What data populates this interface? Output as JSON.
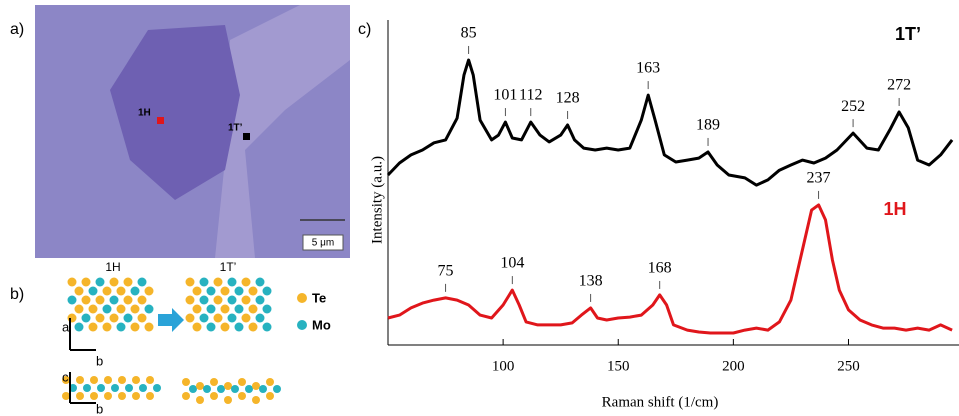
{
  "panels": {
    "a": {
      "label": "a)",
      "spot_1H": "1H",
      "spot_1T": "1T’",
      "scale_bar": "5 μm"
    },
    "b": {
      "label": "b)",
      "title_1H": "1H",
      "title_1T": "1T’",
      "legend": [
        "Te",
        "Mo"
      ],
      "axes_top": [
        "a",
        "b"
      ],
      "axes_bottom": [
        "c",
        "b"
      ]
    }
  },
  "chart_data": {
    "type": "line",
    "panel_label": "c)",
    "x_label": "Raman shift (1/cm)",
    "y_label": "Intensity (a.u.)",
    "xlim": [
      50,
      298
    ],
    "xticks": [
      100,
      150,
      200,
      250
    ],
    "ylim": [
      0,
      100
    ],
    "series": [
      {
        "name": "1T’",
        "color": "#000000",
        "x": [
          50,
          55,
          60,
          65,
          70,
          75,
          80,
          83,
          85,
          87,
          90,
          95,
          98,
          101,
          104,
          108,
          112,
          116,
          120,
          125,
          128,
          131,
          135,
          140,
          145,
          150,
          155,
          160,
          163,
          166,
          170,
          175,
          180,
          185,
          189,
          193,
          198,
          205,
          210,
          215,
          220,
          225,
          230,
          235,
          240,
          245,
          252,
          258,
          263,
          268,
          272,
          276,
          280,
          285,
          290,
          295
        ],
        "values": [
          52.3,
          56,
          58.5,
          60,
          62.2,
          63.1,
          69.8,
          83.1,
          87.7,
          83.1,
          69.2,
          63.1,
          64.6,
          68.6,
          63.7,
          63.1,
          68.6,
          64.6,
          62.5,
          64.6,
          67.7,
          63.1,
          60.6,
          60,
          60.6,
          60,
          60.6,
          69.2,
          76.9,
          69.2,
          58.5,
          56.3,
          56.9,
          57.5,
          59.4,
          55.4,
          52.3,
          51.4,
          49.2,
          50.8,
          53.8,
          55.4,
          56.9,
          56,
          57.5,
          60,
          65.2,
          60.6,
          60,
          66.2,
          71.7,
          66.8,
          56.9,
          55.4,
          58.5,
          63.1
        ],
        "peaks": [
          85,
          101,
          112,
          128,
          163,
          189,
          252,
          272
        ]
      },
      {
        "name": "1H",
        "color": "#e0161b",
        "x": [
          50,
          55,
          60,
          65,
          70,
          75,
          80,
          85,
          90,
          95,
          100,
          104,
          107,
          110,
          115,
          120,
          125,
          130,
          134,
          138,
          141,
          145,
          150,
          155,
          160,
          165,
          168,
          171,
          174,
          180,
          185,
          190,
          195,
          200,
          205,
          210,
          215,
          220,
          225,
          228,
          231,
          234,
          237,
          240,
          243,
          246,
          250,
          255,
          260,
          265,
          270,
          275,
          280,
          285,
          290,
          295
        ],
        "values": [
          8.3,
          9.2,
          11.4,
          12.9,
          13.8,
          14.5,
          13.8,
          12.3,
          9.2,
          8.3,
          12.3,
          16.9,
          12.3,
          7.1,
          6.2,
          6.2,
          6.2,
          6.8,
          9.2,
          11.4,
          8.3,
          7.7,
          8.3,
          8.6,
          9.2,
          12.3,
          15.4,
          12.3,
          6.2,
          4.6,
          4,
          3.7,
          3.7,
          3.7,
          4.6,
          5.2,
          4.6,
          7.1,
          13.8,
          23.1,
          32.3,
          41.5,
          43.1,
          38.5,
          26.2,
          16.9,
          10.8,
          7.7,
          6.2,
          5.2,
          5.2,
          4.6,
          5.2,
          4.6,
          6.2,
          4.6
        ],
        "peaks": [
          75,
          104,
          138,
          168,
          237
        ]
      }
    ]
  }
}
